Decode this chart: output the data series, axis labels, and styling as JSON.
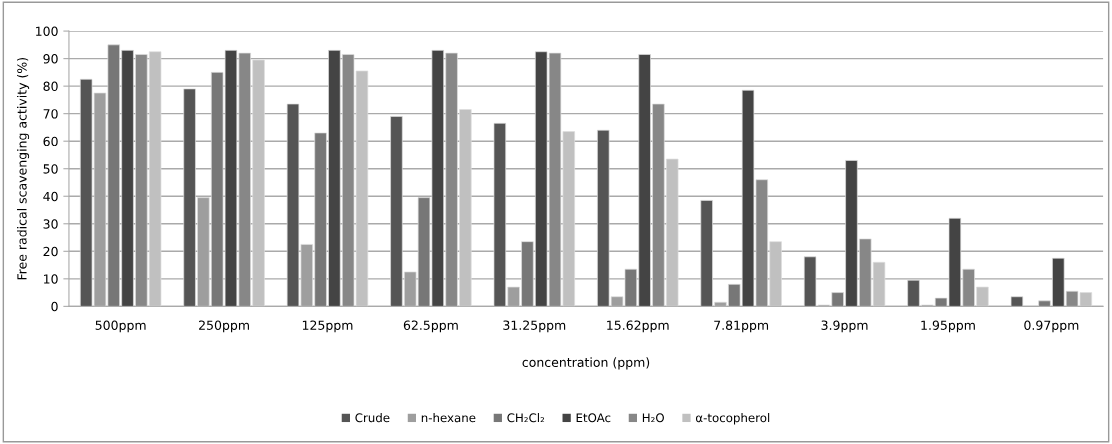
{
  "chart_data": {
    "type": "bar",
    "xlabel": "concentration (ppm)",
    "ylabel": "Free radical scavenging activity (%)",
    "categories": [
      "500ppm",
      "250ppm",
      "125ppm",
      "62.5ppm",
      "31.25ppm",
      "15.62ppm",
      "7.81ppm",
      "3.9ppm",
      "1.95ppm",
      "0.97ppm"
    ],
    "series": [
      {
        "name": "Crude",
        "color": "#555555",
        "values": [
          82.5,
          79,
          73.5,
          69,
          66.5,
          64,
          38.5,
          18,
          9.5,
          3.5
        ]
      },
      {
        "name": "n-hexane",
        "color": "#9e9e9e",
        "values": [
          77.5,
          39.5,
          22.5,
          12.5,
          7,
          3.5,
          1.5,
          0.5,
          0.5,
          null
        ]
      },
      {
        "name": "CH₂Cl₂",
        "color": "#777777",
        "values": [
          95,
          85,
          63,
          39.5,
          23.5,
          13.5,
          8,
          5,
          3,
          2
        ]
      },
      {
        "name": "EtOAc",
        "color": "#444444",
        "values": [
          93,
          93,
          93,
          93,
          92.5,
          91.5,
          78.5,
          53,
          32,
          17.5
        ]
      },
      {
        "name": "H₂O",
        "color": "#878787",
        "values": [
          91.5,
          92,
          91.5,
          92,
          92,
          73.5,
          46,
          24.5,
          13.5,
          5.5
        ]
      },
      {
        "name": "α-tocopherol",
        "color": "#c0c0c0",
        "values": [
          92.5,
          89.5,
          85.5,
          71.5,
          63.5,
          53.5,
          23.5,
          16,
          7,
          5
        ]
      }
    ],
    "ylim": [
      0,
      100
    ],
    "yticks": [
      0,
      10,
      20,
      30,
      40,
      50,
      60,
      70,
      80,
      90,
      100
    ],
    "grid": "y",
    "legend": "bottom"
  }
}
